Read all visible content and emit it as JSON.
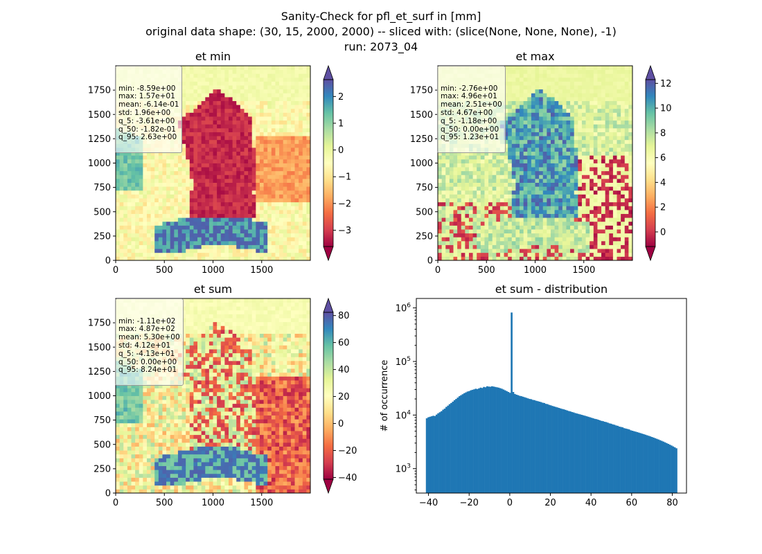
{
  "figure": {
    "title_line1": "Sanity-Check for pfl_et_surf in [mm]",
    "title_line2": "original data shape: (30, 15, 2000, 2000) -- sliced with: (slice(None, None, None), -1)",
    "title_line3": "run: 2073_04"
  },
  "chart_data": [
    {
      "type": "heatmap",
      "title": "et min",
      "xlim": [
        0,
        2000
      ],
      "ylim": [
        0,
        2000
      ],
      "xticks": [
        "0",
        "500",
        "1000",
        "1500"
      ],
      "yticks": [
        "0",
        "250",
        "500",
        "750",
        "1000",
        "1250",
        "1500",
        "1750"
      ],
      "colormap": "Spectral",
      "colorbar_range": [
        -3.61,
        2.63
      ],
      "colorbar_ticks": [
        "−3",
        "−2",
        "−1",
        "0",
        "1",
        "2"
      ],
      "stats": [
        "min: -8.59e+00",
        "max: 1.57e+01",
        "mean: -6.14e-01",
        "std: 1.96e+00",
        "q_5: -3.61e+00",
        "q_50: -1.82e-01",
        "q_95: 2.63e+00"
      ]
    },
    {
      "type": "heatmap",
      "title": "et max",
      "xlim": [
        0,
        2000
      ],
      "ylim": [
        0,
        2000
      ],
      "xticks": [
        "0",
        "500",
        "1000",
        "1500"
      ],
      "yticks": [
        "0",
        "250",
        "500",
        "750",
        "1000",
        "1250",
        "1500",
        "1750"
      ],
      "colormap": "Spectral",
      "colorbar_range": [
        -1.18,
        12.3
      ],
      "colorbar_ticks": [
        "0",
        "2",
        "4",
        "6",
        "8",
        "10",
        "12"
      ],
      "stats": [
        "min: -2.76e+00",
        "max: 4.96e+01",
        "mean: 2.51e+00",
        "std: 4.67e+00",
        "q_5: -1.18e+00",
        "q_50: 0.00e+00",
        "q_95: 1.23e+01"
      ]
    },
    {
      "type": "heatmap",
      "title": "et sum",
      "xlim": [
        0,
        2000
      ],
      "ylim": [
        0,
        2000
      ],
      "xticks": [
        "0",
        "500",
        "1000",
        "1500"
      ],
      "yticks": [
        "0",
        "250",
        "500",
        "750",
        "1000",
        "1250",
        "1500",
        "1750"
      ],
      "colormap": "Spectral",
      "colorbar_range": [
        -41.3,
        82.4
      ],
      "colorbar_ticks": [
        "−40",
        "−20",
        "0",
        "20",
        "40",
        "60",
        "80"
      ],
      "stats": [
        "min: -1.11e+02",
        "max: 4.87e+02",
        "mean: 5.30e+00",
        "std: 4.12e+01",
        "q_5: -4.13e+01",
        "q_50: 0.00e+00",
        "q_95: 8.24e+01"
      ]
    },
    {
      "type": "bar",
      "title": "et sum - distribution",
      "ylabel": "# of occurrence",
      "yscale": "log",
      "xlim": [
        -46,
        87
      ],
      "ylim": [
        350,
        1500000
      ],
      "xticks": [
        "−40",
        "−20",
        "0",
        "20",
        "40",
        "60",
        "80"
      ],
      "yticks": [
        "10^3",
        "10^4",
        "10^5",
        "10^6"
      ],
      "bar_color": "#1f77b4",
      "bin_range": [
        -41.3,
        82.4
      ],
      "counts": [
        8700,
        9100,
        9300,
        9500,
        9700,
        9600,
        10200,
        10800,
        11300,
        11800,
        12600,
        13200,
        14200,
        15000,
        16000,
        16800,
        17800,
        19000,
        20000,
        21200,
        22500,
        23500,
        24500,
        25600,
        26500,
        27500,
        28000,
        29000,
        29600,
        30200,
        31000,
        30600,
        31500,
        32500,
        32000,
        33500,
        33000,
        34500,
        34000,
        33800,
        34500,
        34000,
        33500,
        33000,
        32500,
        31800,
        31000,
        30000,
        29000,
        28000,
        27000,
        26000,
        820000,
        27000,
        24800,
        24000,
        23500,
        22800,
        22500,
        22000,
        21500,
        21000,
        20500,
        20000,
        19800,
        19200,
        19000,
        18500,
        18200,
        17800,
        17500,
        17000,
        16800,
        16200,
        16000,
        15500,
        15200,
        14800,
        14500,
        14200,
        13900,
        13600,
        13300,
        13000,
        12800,
        12500,
        12200,
        11900,
        11700,
        11400,
        11200,
        10900,
        10700,
        10500,
        10300,
        10100,
        9900,
        9700,
        9500,
        9300,
        9100,
        8900,
        8700,
        8500,
        8400,
        8200,
        8000,
        7800,
        7700,
        7500,
        7400,
        7200,
        7000,
        6900,
        6700,
        6600,
        6400,
        6300,
        6100,
        6000,
        5900,
        5700,
        5600,
        5500,
        5400,
        5200,
        5100,
        5000,
        4900,
        4800,
        4700,
        4600,
        4500,
        4400,
        4300,
        4200,
        4100,
        4000,
        3900,
        3800,
        3700,
        3600,
        3500,
        3400,
        3300,
        3200,
        3100,
        3000,
        2900,
        2800,
        2700,
        2600,
        2500,
        2400
      ]
    }
  ]
}
